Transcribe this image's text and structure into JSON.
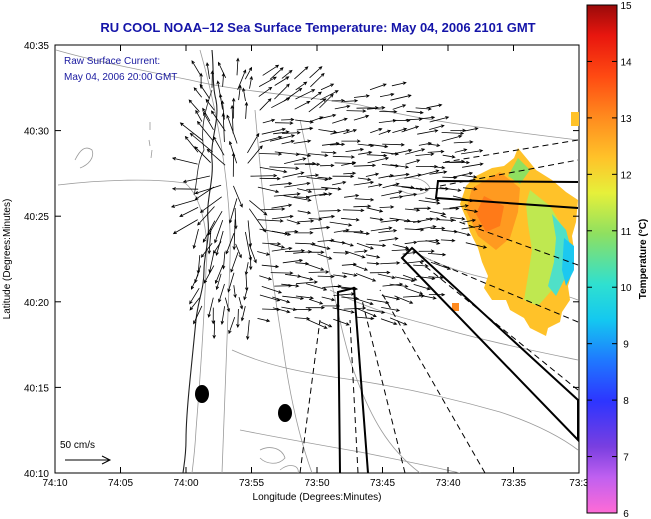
{
  "title": "RU COOL  NOAA–12  Sea Surface Temperature:  May 04, 2006 2101 GMT",
  "annotation": {
    "line1": "Raw Surface Current:",
    "line2": "May 04, 2006 20:00 GMT"
  },
  "scale_label": "50 cm/s",
  "axes": {
    "xlabel": "Longitude (Degrees:Minutes)",
    "ylabel": "Latitude (Degrees:Minutes)",
    "x_ticks": [
      "74:10",
      "74:05",
      "74:00",
      "73:55",
      "73:50",
      "73:45",
      "73:40",
      "73:35",
      "73:3"
    ],
    "y_ticks": [
      "40:35",
      "40:30",
      "40:25",
      "40:20",
      "40:15",
      "40:10"
    ]
  },
  "colorbar": {
    "label": "Temperature (°C)",
    "ticks": [
      "15",
      "14",
      "13",
      "12",
      "11",
      "10",
      "9",
      "8",
      "7",
      "6"
    ],
    "min": 6,
    "max": 15
  },
  "colors": {
    "title": "#1414a8",
    "vectors": "#000000",
    "bathymetry": "#9a9a9a"
  }
}
